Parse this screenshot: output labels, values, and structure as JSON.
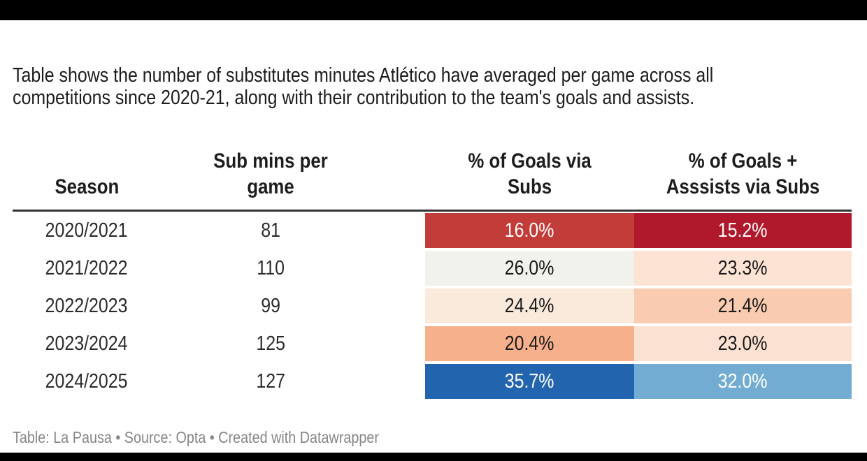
{
  "page": {
    "background": "#ffffff",
    "top_bar_color": "#000000",
    "bottom_bar_color": "#000000"
  },
  "description": "Table shows the number of substitutes minutes Atlético have averaged per game across all\ncompetitions since 2020-21, along with their contribution to the team's goals and assists.",
  "table": {
    "header": {
      "season": "Season",
      "sub_mins": "Sub mins per\ngame",
      "goals_pct": "% of Goals via\nSubs",
      "goals_assists_pct": "% of Goals +\nAsssists via Subs"
    },
    "divider_color": "#333333",
    "rows": [
      {
        "season": "2020/2021",
        "sub_mins_per_game": "81",
        "goals_via_subs": "16.0%",
        "goals_assists_via_subs": "15.2%",
        "goals_cell": {
          "bg": "#c23c39",
          "fg": "#ffffff"
        },
        "goals_assists_cell": {
          "bg": "#b0192c",
          "fg": "#ffffff"
        }
      },
      {
        "season": "2021/2022",
        "sub_mins_per_game": "110",
        "goals_via_subs": "26.0%",
        "goals_assists_via_subs": "23.3%",
        "goals_cell": {
          "bg": "#f1f2eb",
          "fg": "#1a1a1a"
        },
        "goals_assists_cell": {
          "bg": "#fce3d4",
          "fg": "#1a1a1a"
        }
      },
      {
        "season": "2022/2023",
        "sub_mins_per_game": "99",
        "goals_via_subs": "24.4%",
        "goals_assists_via_subs": "21.4%",
        "goals_cell": {
          "bg": "#faeadc",
          "fg": "#1a1a1a"
        },
        "goals_assists_cell": {
          "bg": "#f9cbb0",
          "fg": "#1a1a1a"
        }
      },
      {
        "season": "2023/2024",
        "sub_mins_per_game": "125",
        "goals_via_subs": "20.4%",
        "goals_assists_via_subs": "23.0%",
        "goals_cell": {
          "bg": "#f6b08c",
          "fg": "#1a1a1a"
        },
        "goals_assists_cell": {
          "bg": "#fbe1d2",
          "fg": "#1a1a1a"
        }
      },
      {
        "season": "2024/2025",
        "sub_mins_per_game": "127",
        "goals_via_subs": "35.7%",
        "goals_assists_via_subs": "32.0%",
        "goals_cell": {
          "bg": "#2264ae",
          "fg": "#ffffff"
        },
        "goals_assists_cell": {
          "bg": "#72acd2",
          "fg": "#ffffff"
        }
      }
    ]
  },
  "footer": {
    "text": "Table: La Pausa • Source: Opta • Created with Datawrapper",
    "color": "#868686"
  },
  "chart_data": {
    "type": "table",
    "columns": [
      "Season",
      "Sub mins per game",
      "% of Goals via Subs",
      "% of Goals + Asssists via Subs"
    ],
    "rows": [
      [
        "2020/2021",
        81,
        16.0,
        15.2
      ],
      [
        "2021/2022",
        110,
        26.0,
        23.3
      ],
      [
        "2022/2023",
        99,
        24.4,
        21.4
      ],
      [
        "2023/2024",
        125,
        20.4,
        23.0
      ],
      [
        "2024/2025",
        127,
        35.7,
        32.0
      ]
    ],
    "notes": "Percentage columns are heatmap-shaded on a diverging red (low) to blue (high) scale with neutral near 26%"
  }
}
